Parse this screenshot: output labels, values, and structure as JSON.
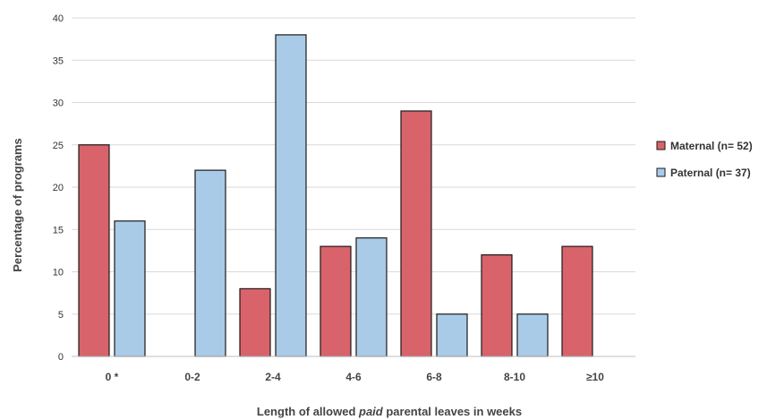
{
  "chart_data": {
    "type": "bar",
    "title": "",
    "categories": [
      "0 *",
      "0-2",
      "2-4",
      "4-6",
      "6-8",
      "8-10",
      "≥10"
    ],
    "series": [
      {
        "name": "Maternal (n= 52)",
        "color": "#d9636b",
        "values": [
          25,
          0,
          8,
          13,
          29,
          12,
          13
        ]
      },
      {
        "name": "Paternal (n= 37)",
        "color": "#a9cbe8",
        "values": [
          16,
          22,
          38,
          14,
          5,
          5,
          0
        ]
      }
    ],
    "xlabel_parts": [
      {
        "text": "Length of allowed ",
        "italic": false
      },
      {
        "text": "paid",
        "italic": true
      },
      {
        "text": " parental leaves in weeks",
        "italic": false
      }
    ],
    "ylabel": "Percentage of programs",
    "ylim": [
      0,
      40
    ],
    "yticks": [
      0,
      5,
      10,
      15,
      20,
      25,
      30,
      35,
      40
    ],
    "grid": true,
    "legend_position": "right"
  }
}
